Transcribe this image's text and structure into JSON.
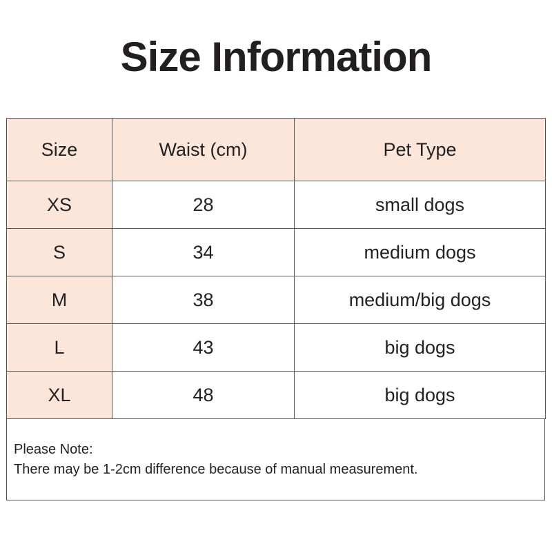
{
  "title": "Size Information",
  "table": {
    "header": [
      "Size",
      "Waist (cm)",
      "Pet Type"
    ],
    "rows": [
      [
        "XS",
        28,
        "small dogs"
      ],
      [
        "S",
        34,
        "medium dogs"
      ],
      [
        "M",
        38,
        "medium/big dogs"
      ],
      [
        "L",
        43,
        "big dogs"
      ],
      [
        "XL",
        48,
        "big dogs"
      ]
    ]
  },
  "note": {
    "heading": "Please Note:",
    "text": "There may be 1-2cm difference because of manual measurement."
  }
}
